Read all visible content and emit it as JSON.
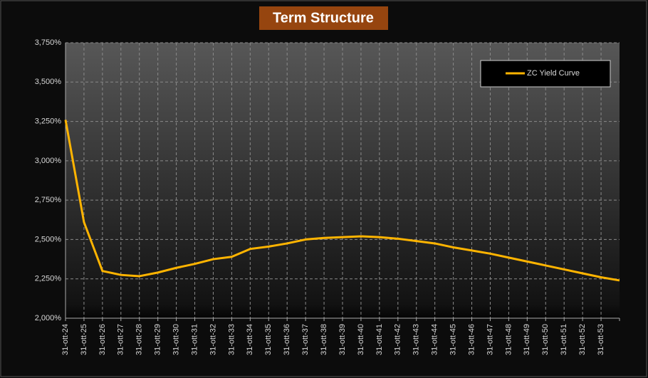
{
  "chart_data": {
    "type": "line",
    "title": "Term Structure",
    "categories": [
      "31-ott-24",
      "31-ott-25",
      "31-ott-26",
      "31-ott-27",
      "31-ott-28",
      "31-ott-29",
      "31-ott-30",
      "31-ott-31",
      "31-ott-32",
      "31-ott-33",
      "31-ott-34",
      "31-ott-35",
      "31-ott-36",
      "31-ott-37",
      "31-ott-38",
      "31-ott-39",
      "31-ott-40",
      "31-ott-41",
      "31-ott-42",
      "31-ott-43",
      "31-ott-44",
      "31-ott-45",
      "31-ott-46",
      "31-ott-47",
      "31-ott-48",
      "31-ott-49",
      "31-ott-50",
      "31-ott-51",
      "31-ott-52",
      "31-ott-53",
      null
    ],
    "series": [
      {
        "name": "ZC Yield Curve",
        "color": "#ffb400",
        "values": [
          3.26,
          2.61,
          2.3,
          2.275,
          2.267,
          2.29,
          2.32,
          2.345,
          2.375,
          2.39,
          2.44,
          2.455,
          2.475,
          2.5,
          2.51,
          2.515,
          2.52,
          2.515,
          2.505,
          2.49,
          2.475,
          2.45,
          2.43,
          2.41,
          2.385,
          2.36,
          2.335,
          2.31,
          2.285,
          2.26,
          2.24
        ]
      }
    ],
    "ylim": [
      2.0,
      3.75
    ],
    "yticks": [
      {
        "value": 2.0,
        "label": "2,000%"
      },
      {
        "value": 2.25,
        "label": "2,250%"
      },
      {
        "value": 2.5,
        "label": "2,500%"
      },
      {
        "value": 2.75,
        "label": "2,750%"
      },
      {
        "value": 3.0,
        "label": "3,000%"
      },
      {
        "value": 3.25,
        "label": "3,250%"
      },
      {
        "value": 3.5,
        "label": "3,500%"
      },
      {
        "value": 3.75,
        "label": "3,750%"
      }
    ],
    "grid": true,
    "legend": "upper right"
  }
}
